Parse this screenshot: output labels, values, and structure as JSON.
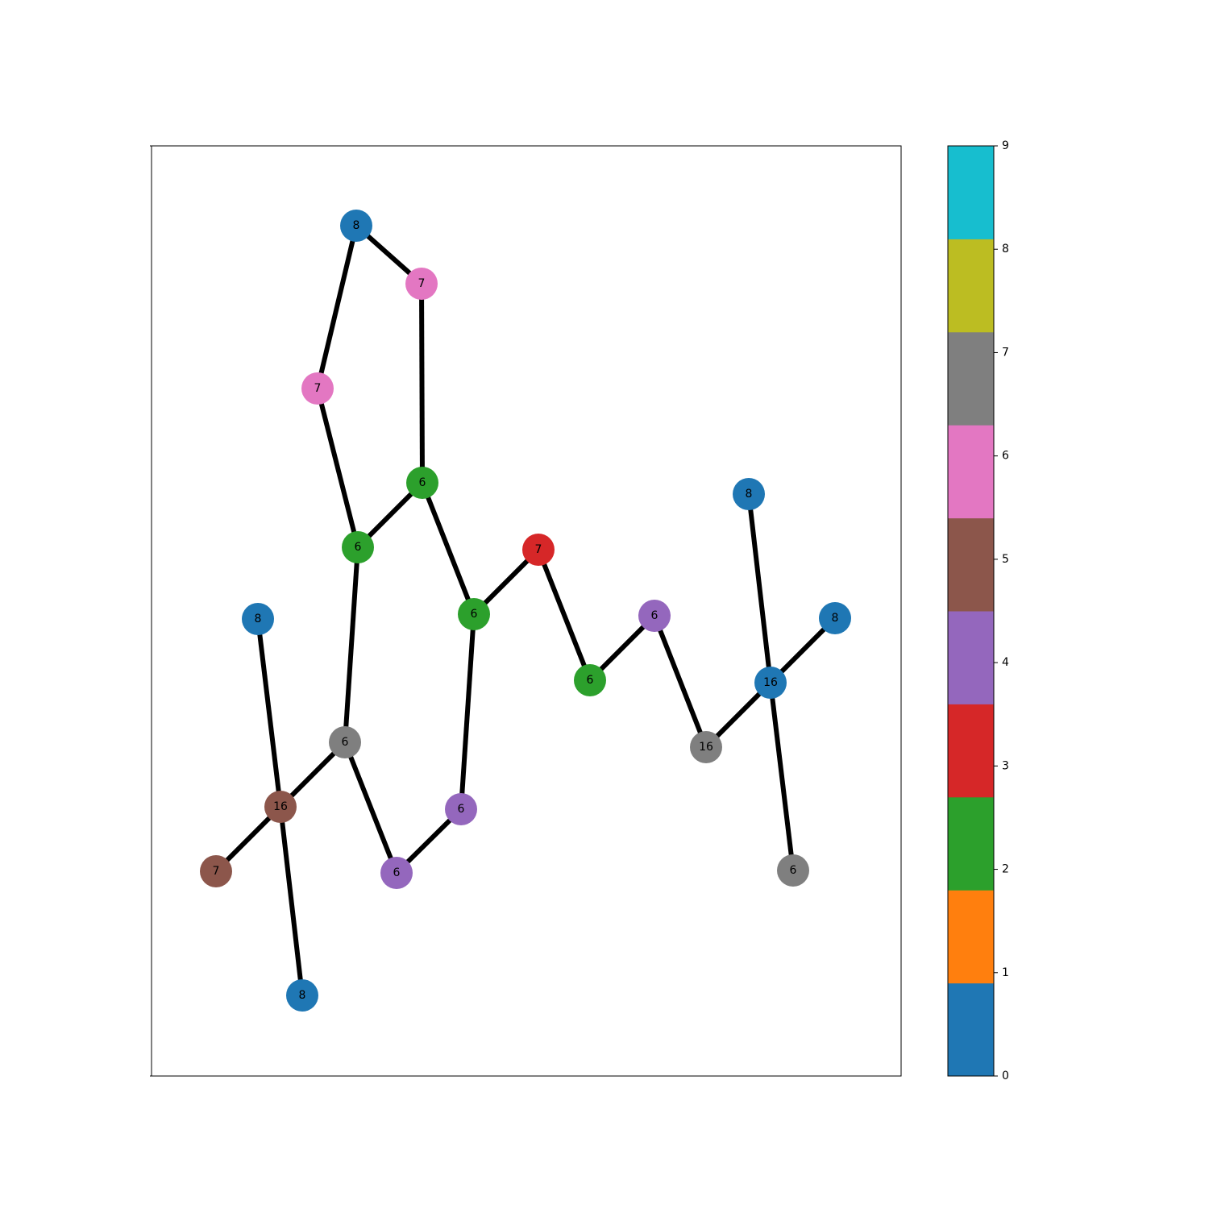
{
  "graph": {
    "nodes": [
      {
        "id": 0,
        "label": "8",
        "color_index": 0,
        "color": "#1f77b4"
      },
      {
        "id": 1,
        "label": "7",
        "color_index": 6,
        "color": "#e377c2"
      },
      {
        "id": 2,
        "label": "7",
        "color_index": 6,
        "color": "#e377c2"
      },
      {
        "id": 3,
        "label": "6",
        "color_index": 2,
        "color": "#2ca02c"
      },
      {
        "id": 4,
        "label": "6",
        "color_index": 2,
        "color": "#2ca02c"
      },
      {
        "id": 5,
        "label": "7",
        "color_index": 3,
        "color": "#d62728"
      },
      {
        "id": 6,
        "label": "6",
        "color_index": 2,
        "color": "#2ca02c"
      },
      {
        "id": 7,
        "label": "8",
        "color_index": 0,
        "color": "#1f77b4"
      },
      {
        "id": 8,
        "label": "6",
        "color_index": 4,
        "color": "#9467bd"
      },
      {
        "id": 9,
        "label": "8",
        "color_index": 0,
        "color": "#1f77b4"
      },
      {
        "id": 10,
        "label": "8",
        "color_index": 0,
        "color": "#1f77b4"
      },
      {
        "id": 11,
        "label": "6",
        "color_index": 2,
        "color": "#2ca02c"
      },
      {
        "id": 12,
        "label": "16",
        "color_index": 0,
        "color": "#1f77b4"
      },
      {
        "id": 13,
        "label": "6",
        "color_index": 7,
        "color": "#7f7f7f"
      },
      {
        "id": 14,
        "label": "16",
        "color_index": 7,
        "color": "#7f7f7f"
      },
      {
        "id": 15,
        "label": "16",
        "color_index": 5,
        "color": "#8c564b"
      },
      {
        "id": 16,
        "label": "6",
        "color_index": 4,
        "color": "#9467bd"
      },
      {
        "id": 17,
        "label": "7",
        "color_index": 5,
        "color": "#8c564b"
      },
      {
        "id": 18,
        "label": "6",
        "color_index": 4,
        "color": "#9467bd"
      },
      {
        "id": 19,
        "label": "6",
        "color_index": 7,
        "color": "#7f7f7f"
      },
      {
        "id": 20,
        "label": "8",
        "color_index": 0,
        "color": "#1f77b4"
      }
    ],
    "edges": [
      [
        0,
        1
      ],
      [
        0,
        2
      ],
      [
        1,
        3
      ],
      [
        2,
        4
      ],
      [
        3,
        4
      ],
      [
        3,
        6
      ],
      [
        4,
        13
      ],
      [
        6,
        5
      ],
      [
        6,
        16
      ],
      [
        5,
        11
      ],
      [
        11,
        8
      ],
      [
        8,
        14
      ],
      [
        14,
        12
      ],
      [
        9,
        12
      ],
      [
        10,
        12
      ],
      [
        12,
        19
      ],
      [
        13,
        15
      ],
      [
        13,
        18
      ],
      [
        18,
        16
      ],
      [
        15,
        7
      ],
      [
        15,
        17
      ],
      [
        15,
        20
      ]
    ],
    "edge_color": "#000000"
  },
  "colorbar": {
    "ticks": [
      "0",
      "1",
      "2",
      "3",
      "4",
      "5",
      "6",
      "7",
      "8",
      "9"
    ],
    "range": [
      0,
      9
    ],
    "colormap": "tab10",
    "colors": [
      "#1f77b4",
      "#ff7f0e",
      "#2ca02c",
      "#d62728",
      "#9467bd",
      "#8c564b",
      "#e377c2",
      "#7f7f7f",
      "#bcbd22",
      "#17becf"
    ]
  }
}
